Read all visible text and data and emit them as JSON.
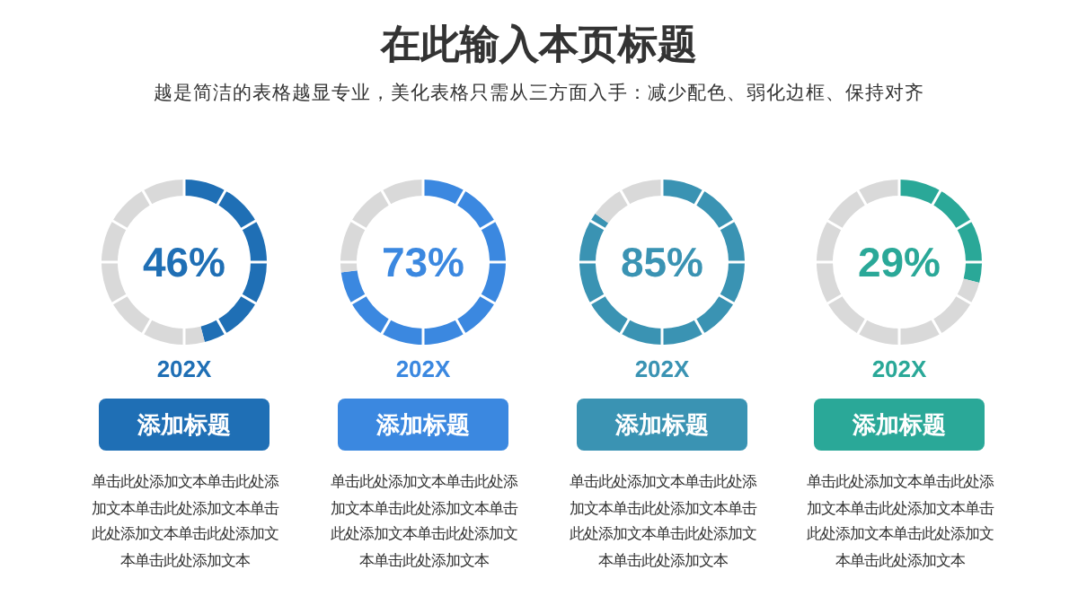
{
  "chart_data": [
    {
      "type": "other",
      "title": "在此输入本页标题",
      "subtitle": "越是简洁的表格越显专业，美化表格只需从三方面入手：减少配色、弱化边框、保持对齐"
    },
    {
      "type": "donut",
      "categories": [
        null,
        null
      ],
      "values": [
        46,
        54
      ],
      "colors": [
        "#1f6fb5",
        "#d9d9d9"
      ],
      "annotations": [
        "46%",
        "202X",
        "添加标题",
        "单击此处添加文本单击此处添加文本单击此处添加文本单击此处添加文本单击此处添加文本单击此处添加文本"
      ]
    },
    {
      "type": "donut",
      "categories": [
        null,
        null
      ],
      "values": [
        73,
        27
      ],
      "colors": [
        "#3b88e0",
        "#d9d9d9"
      ],
      "annotations": [
        "73%",
        "202X",
        "添加标题",
        "单击此处添加文本单击此处添加文本单击此处添加文本单击此处添加文本单击此处添加文本单击此处添加文本"
      ]
    },
    {
      "type": "donut",
      "categories": [
        null,
        null
      ],
      "values": [
        85,
        15
      ],
      "colors": [
        "#3a93b3",
        "#d9d9d9"
      ],
      "annotations": [
        "85%",
        "202X",
        "添加标题",
        "单击此处添加文本单击此处添加文本单击此处添加文本单击此处添加文本单击此处添加文本单击此处添加文本"
      ]
    },
    {
      "type": "donut",
      "categories": [
        null,
        null
      ],
      "values": [
        29,
        71
      ],
      "colors": [
        "#2aa898",
        "#d9d9d9"
      ],
      "annotations": [
        "29%",
        "202X",
        "添加标题",
        "单击此处添加文本单击此处添加文本单击此处添加文本单击此处添加文本单击此处添加文本单击此处添加文本"
      ]
    }
  ]
}
